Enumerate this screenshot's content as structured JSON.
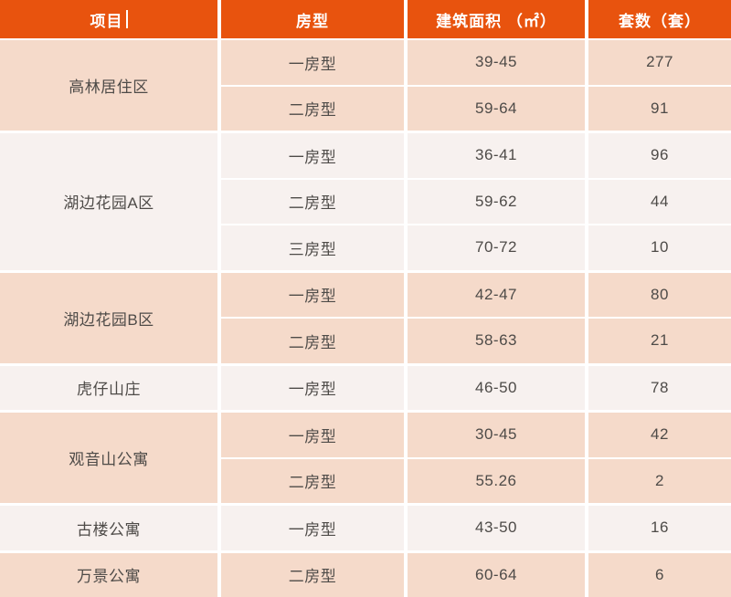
{
  "table": {
    "columns": [
      {
        "label": "项目"
      },
      {
        "label": "房型"
      },
      {
        "label": "建筑面积 （㎡）"
      },
      {
        "label": "套数（套）"
      }
    ],
    "groups": [
      {
        "project": "高林居住区",
        "rows": [
          {
            "type": "一房型",
            "area": "39-45",
            "count": "277"
          },
          {
            "type": "二房型",
            "area": "59-64",
            "count": "91"
          }
        ]
      },
      {
        "project": "湖边花园A区",
        "rows": [
          {
            "type": "一房型",
            "area": "36-41",
            "count": "96"
          },
          {
            "type": "二房型",
            "area": "59-62",
            "count": "44"
          },
          {
            "type": "三房型",
            "area": "70-72",
            "count": "10"
          }
        ]
      },
      {
        "project": "湖边花园B区",
        "rows": [
          {
            "type": "一房型",
            "area": "42-47",
            "count": "80"
          },
          {
            "type": "二房型",
            "area": "58-63",
            "count": "21"
          }
        ]
      },
      {
        "project": "虎仔山庄",
        "rows": [
          {
            "type": "一房型",
            "area": "46-50",
            "count": "78"
          }
        ]
      },
      {
        "project": "观音山公寓",
        "rows": [
          {
            "type": "一房型",
            "area": "30-45",
            "count": "42"
          },
          {
            "type": "二房型",
            "area": "55.26",
            "count": "2"
          }
        ]
      },
      {
        "project": "古楼公寓",
        "rows": [
          {
            "type": "一房型",
            "area": "43-50",
            "count": "16"
          }
        ]
      },
      {
        "project": "万景公寓",
        "rows": [
          {
            "type": "二房型",
            "area": "60-64",
            "count": "6"
          }
        ]
      }
    ],
    "colors": {
      "header_bg": "#E8530E",
      "header_text": "#FFFFFF",
      "group_bg_pink": "#F5DACA",
      "group_bg_light": "#F7F1EF",
      "body_text": "#4E4B48",
      "separator": "#FFFFFF"
    }
  },
  "chart_data": {
    "type": "table",
    "columns": [
      "项目",
      "房型",
      "建筑面积（㎡）",
      "套数（套）"
    ],
    "rows": [
      [
        "高林居住区",
        "一房型",
        "39-45",
        277
      ],
      [
        "高林居住区",
        "二房型",
        "59-64",
        91
      ],
      [
        "湖边花园A区",
        "一房型",
        "36-41",
        96
      ],
      [
        "湖边花园A区",
        "二房型",
        "59-62",
        44
      ],
      [
        "湖边花园A区",
        "三房型",
        "70-72",
        10
      ],
      [
        "湖边花园B区",
        "一房型",
        "42-47",
        80
      ],
      [
        "湖边花园B区",
        "二房型",
        "58-63",
        21
      ],
      [
        "虎仔山庄",
        "一房型",
        "46-50",
        78
      ],
      [
        "观音山公寓",
        "一房型",
        "30-45",
        42
      ],
      [
        "观音山公寓",
        "二房型",
        "55.26",
        2
      ],
      [
        "古楼公寓",
        "一房型",
        "43-50",
        16
      ],
      [
        "万景公寓",
        "二房型",
        "60-64",
        6
      ]
    ]
  }
}
